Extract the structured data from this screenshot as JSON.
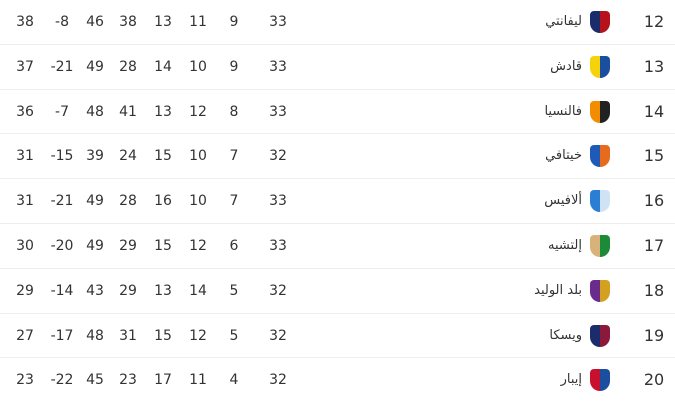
{
  "rows": [
    {
      "rank": "12",
      "team": "ليفانتي",
      "logo": "levante-crest",
      "colors": [
        "#1a2c6b",
        "#b5121b"
      ],
      "played": "33",
      "won": "9",
      "drawn": "11",
      "lost": "13",
      "gf": "38",
      "ga": "46",
      "gd": "-8",
      "pts": "38"
    },
    {
      "rank": "13",
      "team": "قادش",
      "logo": "cadiz-crest",
      "colors": [
        "#f5d20a",
        "#1a4fa0"
      ],
      "played": "33",
      "won": "9",
      "drawn": "10",
      "lost": "14",
      "gf": "28",
      "ga": "49",
      "gd": "-21",
      "pts": "37"
    },
    {
      "rank": "14",
      "team": "فالنسيا",
      "logo": "valencia-crest",
      "colors": [
        "#f28c00",
        "#222222"
      ],
      "played": "33",
      "won": "8",
      "drawn": "12",
      "lost": "13",
      "gf": "41",
      "ga": "48",
      "gd": "-7",
      "pts": "36"
    },
    {
      "rank": "15",
      "team": "خيتافي",
      "logo": "getafe-crest",
      "colors": [
        "#1e5bb8",
        "#e86a1c"
      ],
      "played": "32",
      "won": "7",
      "drawn": "10",
      "lost": "15",
      "gf": "24",
      "ga": "39",
      "gd": "-15",
      "pts": "31"
    },
    {
      "rank": "16",
      "team": "ألافيس",
      "logo": "alaves-crest",
      "colors": [
        "#2a7fd4",
        "#cfe3f5"
      ],
      "played": "33",
      "won": "7",
      "drawn": "10",
      "lost": "16",
      "gf": "28",
      "ga": "49",
      "gd": "-21",
      "pts": "31"
    },
    {
      "rank": "17",
      "team": "إلتشيه",
      "logo": "elche-crest",
      "colors": [
        "#d9b27a",
        "#1d8a3a"
      ],
      "played": "33",
      "won": "6",
      "drawn": "12",
      "lost": "15",
      "gf": "29",
      "ga": "49",
      "gd": "-20",
      "pts": "30"
    },
    {
      "rank": "18",
      "team": "بلد الوليد",
      "logo": "valladolid-crest",
      "colors": [
        "#6a2c8c",
        "#d4a020"
      ],
      "played": "32",
      "won": "5",
      "drawn": "14",
      "lost": "13",
      "gf": "29",
      "ga": "43",
      "gd": "-14",
      "pts": "29"
    },
    {
      "rank": "19",
      "team": "ويسكا",
      "logo": "huesca-crest",
      "colors": [
        "#1a2c6b",
        "#8b1a3a"
      ],
      "played": "32",
      "won": "5",
      "drawn": "12",
      "lost": "15",
      "gf": "31",
      "ga": "48",
      "gd": "-17",
      "pts": "27"
    },
    {
      "rank": "20",
      "team": "إيبار",
      "logo": "eibar-crest",
      "colors": [
        "#c8102e",
        "#1a4fa0"
      ],
      "played": "32",
      "won": "4",
      "drawn": "11",
      "lost": "17",
      "gf": "23",
      "ga": "45",
      "gd": "-22",
      "pts": "23"
    }
  ]
}
